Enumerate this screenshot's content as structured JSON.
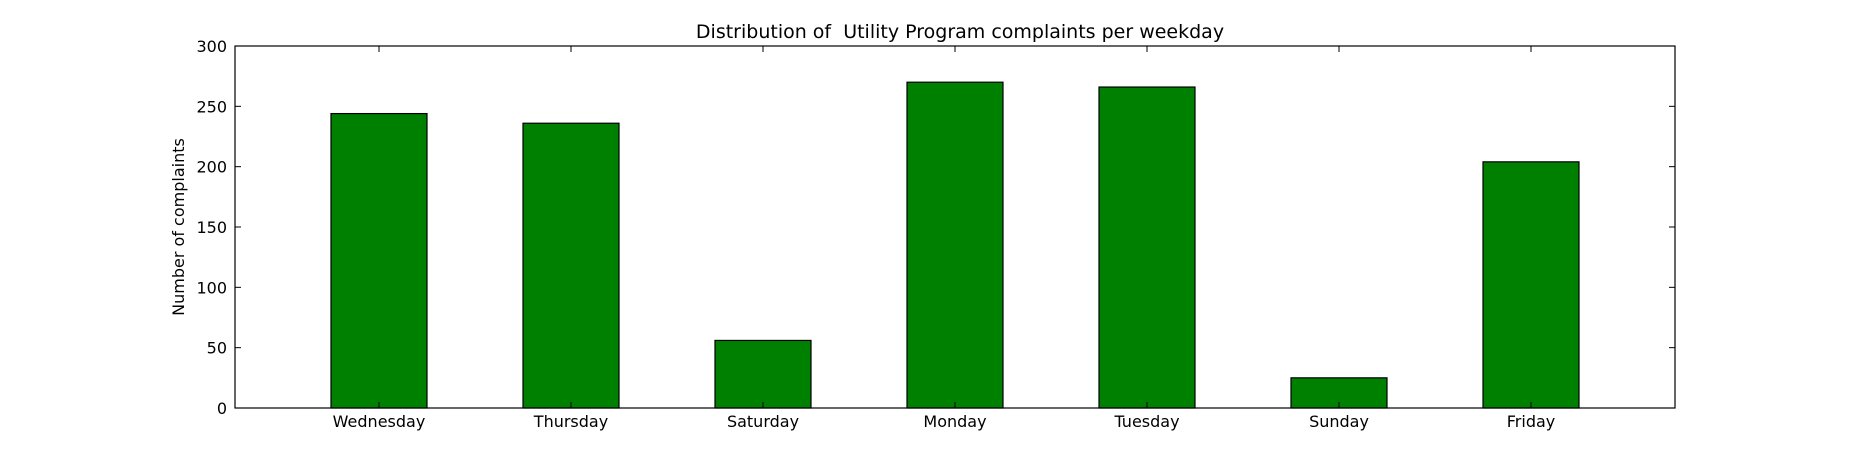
{
  "chart_data": {
    "type": "bar",
    "title": "Distribution of  Utility Program complaints per weekday",
    "xlabel": "",
    "ylabel": "Number of complaints",
    "categories": [
      "Wednesday",
      "Thursday",
      "Saturday",
      "Monday",
      "Tuesday",
      "Sunday",
      "Friday"
    ],
    "values": [
      244,
      236,
      56,
      270,
      266,
      25,
      204
    ],
    "ylim": [
      0,
      300
    ],
    "yticks": [
      0,
      50,
      100,
      150,
      200,
      250,
      300
    ],
    "bar_color": "#008000",
    "edge_color": "#000000",
    "grid": false,
    "legend": "none"
  }
}
